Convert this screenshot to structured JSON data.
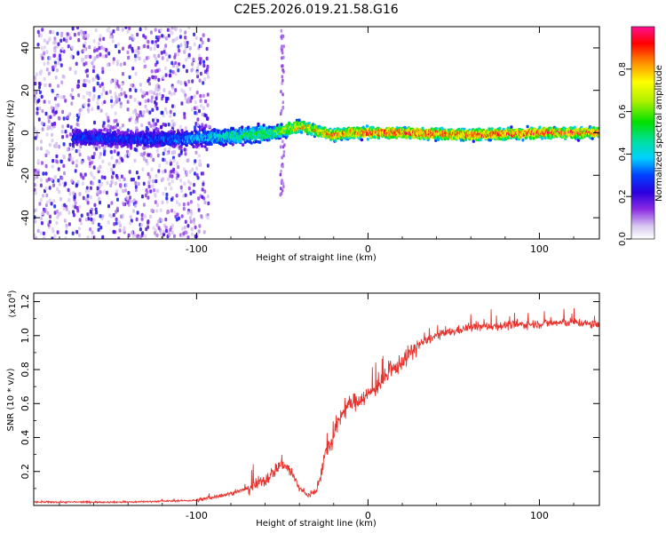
{
  "title": "C2E5.2026.019.21.58.G16",
  "chart_data": [
    {
      "type": "heatmap",
      "name": "spectrogram",
      "xlabel": "Height of straight line (km)",
      "ylabel": "Frequency (Hz)",
      "xlim": [
        -195,
        135
      ],
      "ylim": [
        -50,
        50
      ],
      "xticks": [
        -100,
        0,
        100
      ],
      "xtick_labels": [
        "-100",
        "0",
        "100"
      ],
      "yticks": [
        -40,
        -20,
        0,
        20,
        40
      ],
      "ytick_labels": [
        "-40",
        "-20",
        "0",
        "20",
        "40"
      ],
      "ridge": {
        "x": [
          -170,
          -140,
          -110,
          -90,
          -70,
          -55,
          -45,
          -38,
          -30,
          -20,
          -10,
          0,
          20,
          60,
          100,
          135
        ],
        "freq": [
          -2,
          -3,
          -3,
          -2,
          -1,
          0,
          2,
          3,
          1,
          -1,
          0,
          0,
          0,
          -1,
          0,
          0
        ],
        "peak_amplitude": [
          0.3,
          0.3,
          0.35,
          0.45,
          0.55,
          0.6,
          0.75,
          0.85,
          0.85,
          0.9,
          0.9,
          0.95,
          0.95,
          0.95,
          0.95,
          0.9
        ]
      },
      "colorbar": {
        "label": "Normalized spectral amplitude",
        "range": [
          0,
          1
        ],
        "ticks": [
          0.0,
          0.2,
          0.4,
          0.6,
          0.8
        ],
        "tick_labels": [
          "0.0",
          "0.2",
          "0.4",
          "0.6",
          "0.8"
        ]
      }
    },
    {
      "type": "line",
      "name": "snr",
      "xlabel": "Height of straight line (km)",
      "ylabel": "SNR (10 * v/v)",
      "multiplier_label": "(x10",
      "multiplier_exp": "4",
      "xlim": [
        -195,
        135
      ],
      "ylim": [
        0,
        1.25
      ],
      "xticks": [
        -100,
        0,
        100
      ],
      "xtick_labels": [
        "-100",
        "0",
        "100"
      ],
      "yticks": [
        0.2,
        0.4,
        0.6,
        0.8,
        1.0,
        1.2
      ],
      "ytick_labels": [
        "0.2",
        "0.4",
        "0.6",
        "0.8",
        "1.0",
        "1.2"
      ],
      "series": [
        {
          "name": "SNR",
          "color": "#e8322d",
          "x": [
            -195,
            -140,
            -100,
            -90,
            -80,
            -70,
            -60,
            -55,
            -50,
            -45,
            -40,
            -35,
            -30,
            -25,
            -20,
            -15,
            -10,
            0,
            10,
            20,
            25,
            30,
            40,
            60,
            80,
            100,
            120,
            135
          ],
          "y": [
            0.02,
            0.02,
            0.03,
            0.05,
            0.07,
            0.1,
            0.15,
            0.2,
            0.25,
            0.2,
            0.1,
            0.06,
            0.08,
            0.3,
            0.4,
            0.55,
            0.6,
            0.65,
            0.75,
            0.85,
            0.9,
            0.95,
            1.0,
            1.05,
            1.06,
            1.07,
            1.08,
            1.06
          ]
        }
      ]
    }
  ],
  "colors": {
    "line": "#e8322d",
    "background": "#ffffff"
  }
}
